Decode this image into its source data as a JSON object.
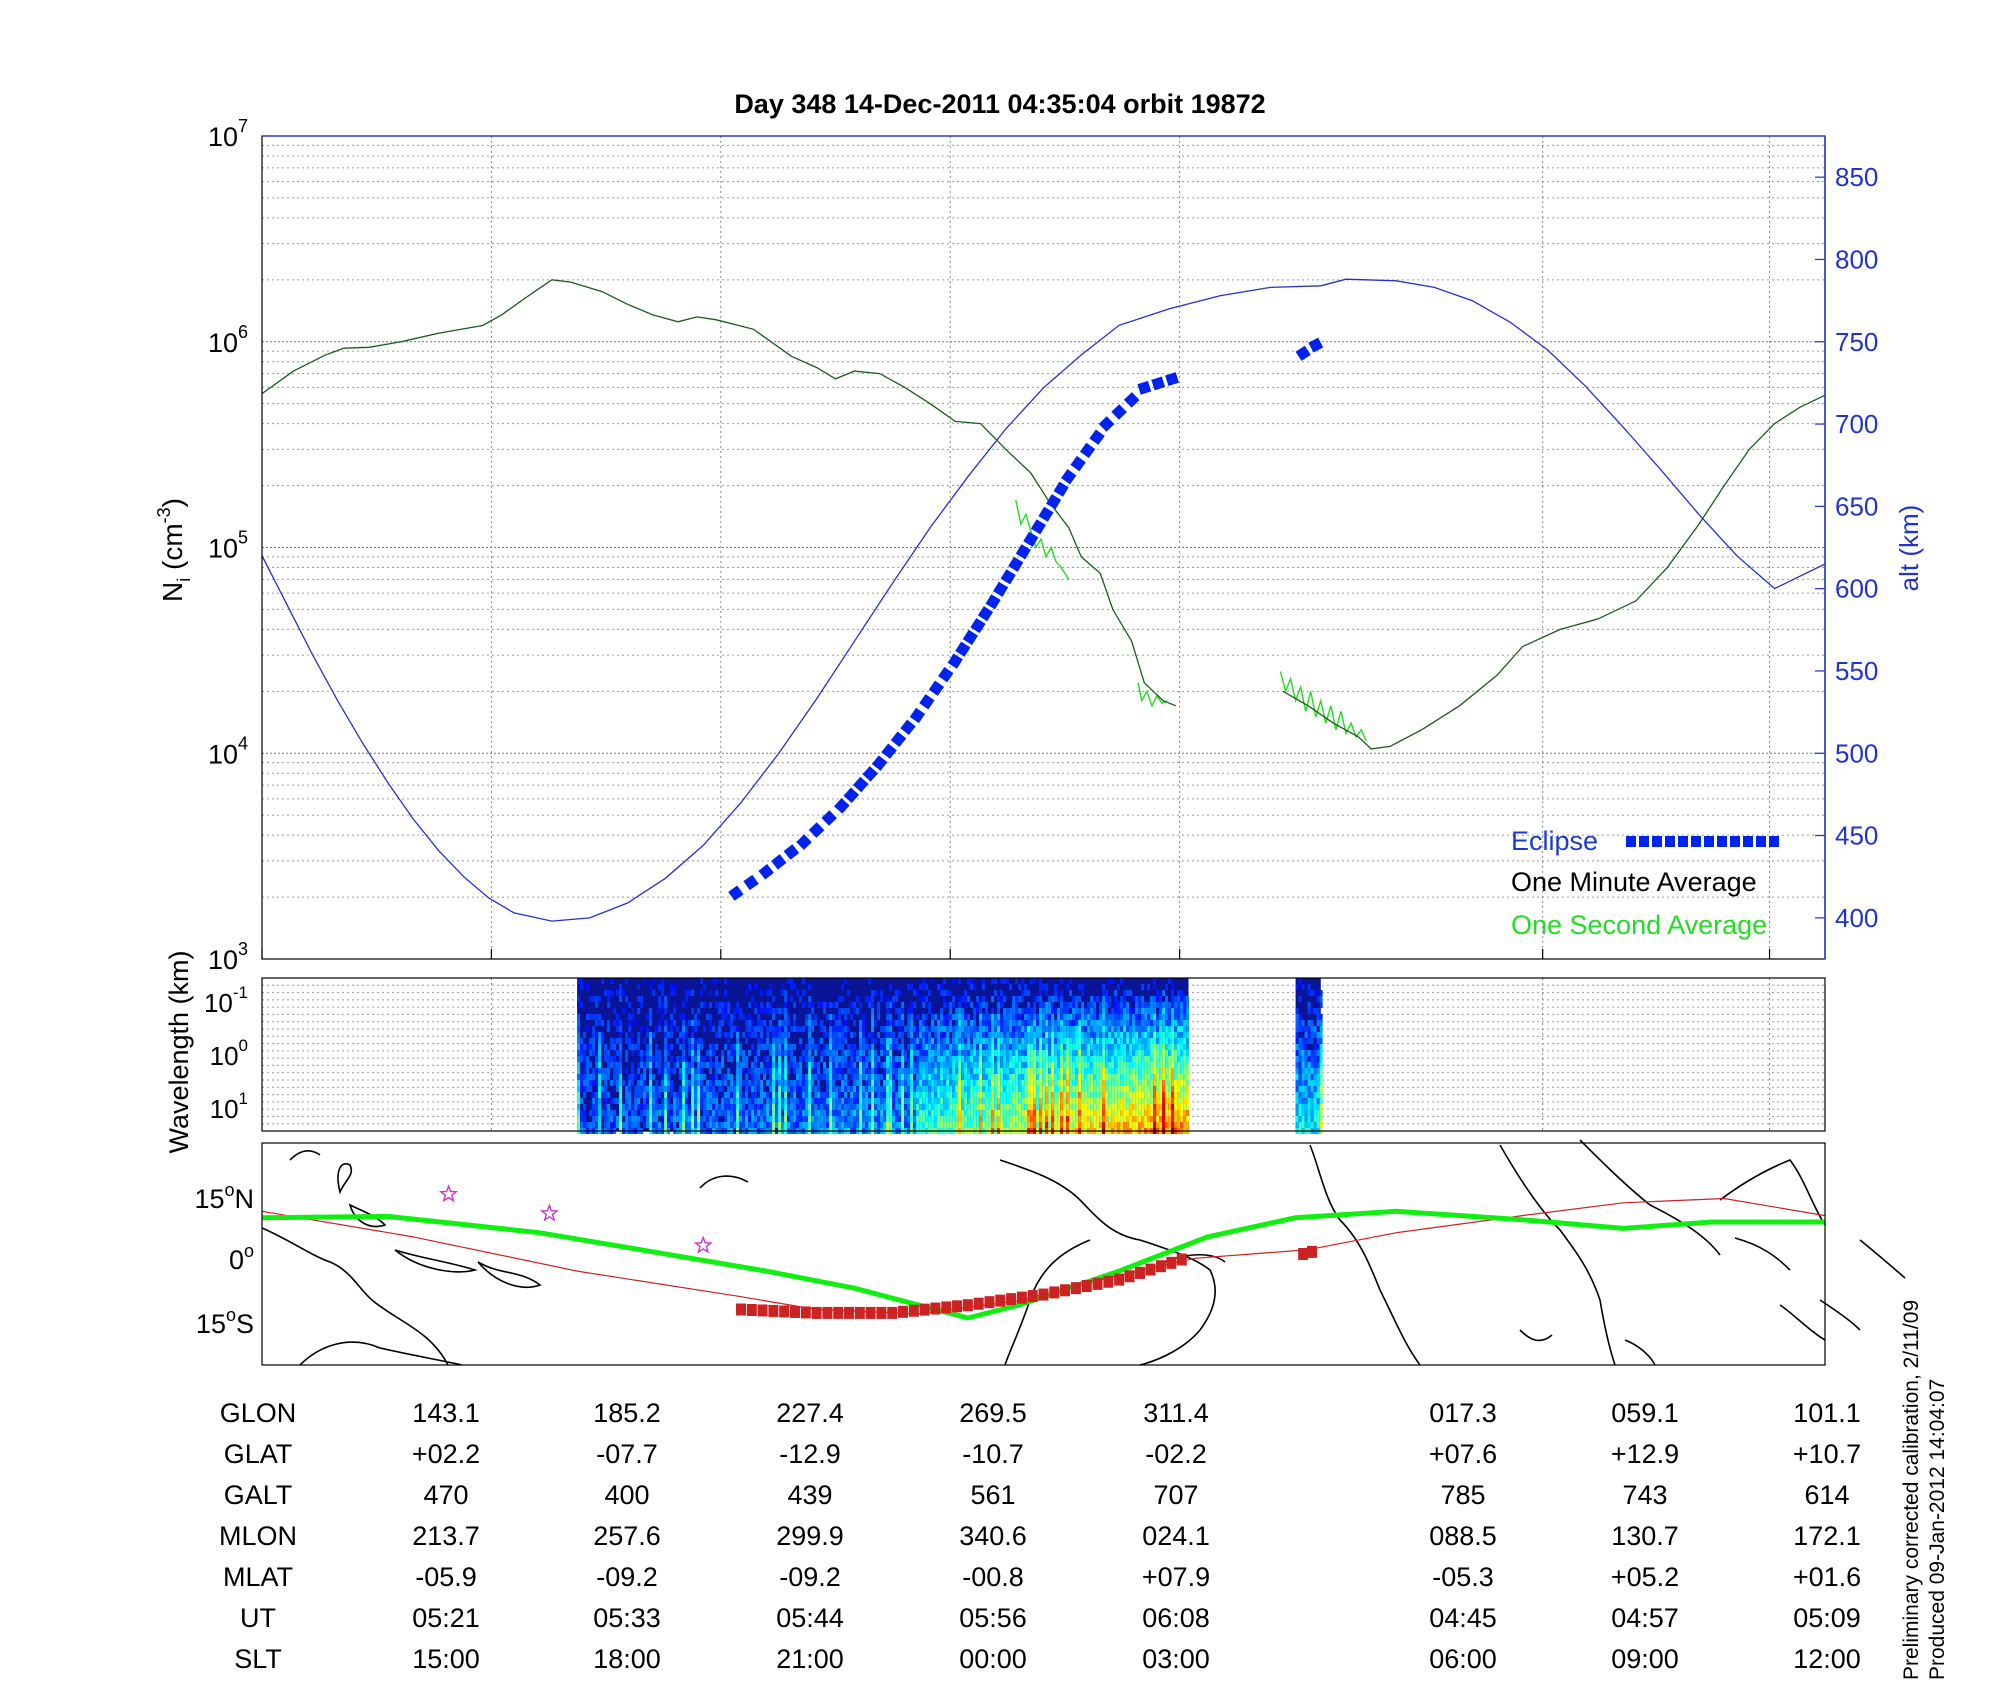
{
  "title": "Day 348  14-Dec-2011 04:35:04   orbit 19872",
  "side_note": {
    "line1": "Preliminary corrected calibration, 2/11/09",
    "line2": "Produced 09-Jan-2012 14:04:07"
  },
  "colors": {
    "density": "#1a5c1a",
    "density_second": "#22dd22",
    "altitude": "#2233cc",
    "eclipse": "#0022ee",
    "track": "#cc2222",
    "ground_track": "#11ee11",
    "star": "#cc33cc",
    "legend_eclipse": "#1a3ad6",
    "legend_minute": "#000000",
    "legend_second": "#22dd22",
    "right_axis": "#2233cc"
  },
  "chart_data": [
    {
      "type": "line",
      "panel": "density",
      "ylabel": "N",
      "ylabel_sub": "i",
      "ylabel_unit_base": "(cm",
      "ylabel_unit_sup": "-3",
      "ylabel_unit_end": ")",
      "yscale": "log",
      "ylim": [
        1000,
        10000000
      ],
      "y_ticks": [
        {
          "base": "10",
          "exp": "3"
        },
        {
          "base": "10",
          "exp": "4"
        },
        {
          "base": "10",
          "exp": "5"
        },
        {
          "base": "10",
          "exp": "6"
        },
        {
          "base": "10",
          "exp": "7"
        }
      ],
      "y2label": "alt (km)",
      "y2lim": [
        375,
        875
      ],
      "y2_ticks": [
        "400",
        "450",
        "500",
        "550",
        "600",
        "650",
        "700",
        "750",
        "800",
        "850"
      ],
      "grid": true,
      "legend": {
        "placement": "bottom-right",
        "entries": [
          {
            "name": "Eclipse",
            "marker": "square"
          },
          {
            "name": "One Minute Average",
            "marker": "none"
          },
          {
            "name": "One Second Average",
            "marker": "none"
          }
        ]
      },
      "series": [
        {
          "name": "One Minute Average",
          "segments": [
            [
              [
                0,
                560000
              ],
              [
                25,
                720000
              ],
              [
                50,
                860000
              ],
              [
                65,
                930000
              ],
              [
                85,
                940000
              ],
              [
                110,
                1000000
              ],
              [
                140,
                1100000
              ],
              [
                175,
                1200000
              ],
              [
                190,
                1350000
              ],
              [
                210,
                1650000
              ],
              [
                230,
                2000000
              ],
              [
                245,
                1950000
              ],
              [
                270,
                1750000
              ],
              [
                290,
                1520000
              ],
              [
                310,
                1350000
              ],
              [
                330,
                1250000
              ],
              [
                345,
                1320000
              ],
              [
                360,
                1280000
              ],
              [
                390,
                1150000
              ],
              [
                420,
                850000
              ],
              [
                440,
                750000
              ],
              [
                455,
                660000
              ],
              [
                470,
                720000
              ],
              [
                490,
                700000
              ],
              [
                510,
                600000
              ],
              [
                530,
                500000
              ],
              [
                550,
                410000
              ],
              [
                570,
                400000
              ],
              [
                590,
                300000
              ],
              [
                610,
                230000
              ],
              [
                625,
                165000
              ],
              [
                640,
                125000
              ],
              [
                650,
                90000
              ],
              [
                665,
                75000
              ],
              [
                675,
                50000
              ],
              [
                690,
                35000
              ],
              [
                700,
                22000
              ],
              [
                715,
                18000
              ],
              [
                725,
                17000
              ]
            ],
            [
              [
                810,
                20000
              ],
              [
                830,
                17000
              ],
              [
                850,
                14000
              ],
              [
                870,
                12000
              ],
              [
                880,
                10500
              ],
              [
                895,
                10800
              ],
              [
                920,
                13000
              ],
              [
                950,
                17000
              ],
              [
                980,
                24000
              ],
              [
                1000,
                33000
              ],
              [
                1030,
                40000
              ],
              [
                1060,
                45000
              ],
              [
                1090,
                55000
              ],
              [
                1115,
                80000
              ],
              [
                1140,
                130000
              ],
              [
                1160,
                200000
              ],
              [
                1180,
                300000
              ],
              [
                1200,
                400000
              ],
              [
                1220,
                480000
              ],
              [
                1240,
                550000
              ]
            ]
          ]
        },
        {
          "name": "One Second Average",
          "segments": [
            [
              [
                598,
                170000
              ],
              [
                602,
                130000
              ],
              [
                606,
                145000
              ],
              [
                610,
                120000
              ],
              [
                614,
                100000
              ],
              [
                618,
                110000
              ],
              [
                622,
                90000
              ],
              [
                626,
                100000
              ],
              [
                630,
                85000
              ],
              [
                634,
                80000
              ],
              [
                640,
                70000
              ]
            ],
            [
              [
                695,
                22000
              ],
              [
                698,
                18000
              ],
              [
                702,
                20000
              ],
              [
                706,
                17000
              ],
              [
                710,
                19000
              ],
              [
                714,
                17500
              ],
              [
                718,
                18000
              ]
            ],
            [
              [
                808,
                25000
              ],
              [
                812,
                20000
              ],
              [
                816,
                23000
              ],
              [
                820,
                18000
              ],
              [
                824,
                21000
              ],
              [
                828,
                16000
              ],
              [
                832,
                20000
              ],
              [
                836,
                15000
              ],
              [
                840,
                18000
              ],
              [
                844,
                14000
              ],
              [
                848,
                17000
              ],
              [
                852,
                13000
              ],
              [
                856,
                16000
              ],
              [
                860,
                12500
              ],
              [
                864,
                14000
              ],
              [
                868,
                12000
              ],
              [
                872,
                13000
              ],
              [
                876,
                11500
              ]
            ]
          ]
        },
        {
          "name": "Altitude",
          "axis": "right",
          "segments": [
            [
              [
                0,
                620
              ],
              [
                20,
                590
              ],
              [
                40,
                560
              ],
              [
                60,
                532
              ],
              [
                80,
                506
              ],
              [
                100,
                482
              ],
              [
                120,
                460
              ],
              [
                140,
                441
              ],
              [
                160,
                425
              ],
              [
                180,
                412
              ],
              [
                200,
                403
              ],
              [
                230,
                398
              ],
              [
                260,
                400
              ],
              [
                290,
                409
              ],
              [
                320,
                424
              ],
              [
                350,
                444
              ],
              [
                380,
                470
              ],
              [
                410,
                500
              ],
              [
                440,
                533
              ],
              [
                470,
                568
              ],
              [
                500,
                603
              ],
              [
                530,
                637
              ],
              [
                560,
                668
              ],
              [
                590,
                697
              ],
              [
                620,
                722
              ],
              [
                650,
                742
              ],
              [
                680,
                760
              ],
              [
                720,
                770
              ],
              [
                760,
                778
              ],
              [
                800,
                783
              ],
              [
                840,
                784
              ],
              [
                860,
                788
              ],
              [
                900,
                787
              ],
              [
                930,
                783
              ],
              [
                960,
                775
              ],
              [
                990,
                762
              ],
              [
                1020,
                745
              ],
              [
                1050,
                723
              ],
              [
                1080,
                698
              ],
              [
                1110,
                672
              ],
              [
                1140,
                645
              ],
              [
                1170,
                620
              ],
              [
                1200,
                600
              ],
              [
                1240,
                615
              ]
            ]
          ]
        },
        {
          "name": "Eclipse",
          "axis": "right",
          "marker": "square",
          "segments": [
            [
              [
                376,
                415
              ],
              [
                400,
                428
              ],
              [
                430,
                446
              ],
              [
                460,
                468
              ],
              [
                490,
                494
              ],
              [
                520,
                523
              ],
              [
                550,
                556
              ],
              [
                580,
                592
              ],
              [
                610,
                630
              ],
              [
                640,
                668
              ],
              [
                670,
                700
              ],
              [
                700,
                722
              ],
              [
                733,
                730
              ]
            ],
            [
              [
                826,
                743
              ],
              [
                836,
                748
              ],
              [
                846,
                752
              ]
            ]
          ]
        }
      ]
    },
    {
      "type": "heatmap",
      "panel": "spectrogram",
      "ylabel": "Wavelength (km)",
      "y_ticks": [
        {
          "base": "10",
          "exp": "-1"
        },
        {
          "base": "10",
          "exp": "0"
        },
        {
          "base": "10",
          "exp": "1"
        }
      ],
      "data_blocks": [
        {
          "x_start": 250,
          "x_end": 735
        },
        {
          "x_start": 820,
          "x_end": 840
        }
      ],
      "colormap": "jet"
    },
    {
      "type": "line",
      "panel": "ground_track",
      "y_ticks": [
        {
          "value": "15",
          "sup": "o",
          "suffix": "N"
        },
        {
          "value": "0",
          "sup": "o",
          "suffix": ""
        },
        {
          "value": "15",
          "sup": "o",
          "suffix": "S"
        }
      ],
      "ylim": [
        -25,
        27
      ],
      "series": [
        {
          "name": "Ground track",
          "values": [
            [
              0,
              9.5
            ],
            [
              100,
              9.8
            ],
            [
              220,
              6
            ],
            [
              300,
              2
            ],
            [
              400,
              -3
            ],
            [
              470,
              -7
            ],
            [
              560,
              -14
            ],
            [
              600,
              -11
            ],
            [
              680,
              -3
            ],
            [
              750,
              5
            ],
            [
              820,
              9.5
            ],
            [
              900,
              11
            ],
            [
              1000,
              9
            ],
            [
              1080,
              7
            ],
            [
              1150,
              8.5
            ],
            [
              1240,
              8.5
            ]
          ]
        },
        {
          "name": "Orbit track",
          "values": [
            [
              0,
              11
            ],
            [
              120,
              5
            ],
            [
              250,
              -3
            ],
            [
              380,
              -9
            ],
            [
              440,
              -12
            ],
            [
              520,
              -13
            ],
            [
              600,
              -10
            ],
            [
              680,
              -4
            ],
            [
              740,
              0
            ],
            [
              830,
              2
            ],
            [
              900,
              6
            ],
            [
              1000,
              10
            ],
            [
              1080,
              13
            ],
            [
              1160,
              14
            ],
            [
              1240,
              10
            ]
          ]
        },
        {
          "name": "Eclipse track",
          "values": [
            [
              380,
              -12
            ],
            [
              440,
              -12.8
            ],
            [
              500,
              -12.8
            ],
            [
              560,
              -11
            ],
            [
              620,
              -8.5
            ],
            [
              680,
              -5
            ],
            [
              738,
              0.5
            ]
          ],
          "second_segment": [
            [
              826,
              1
            ],
            [
              840,
              2
            ]
          ]
        }
      ],
      "stars": [
        [
          148,
          15
        ],
        [
          228,
          10.5
        ],
        [
          350,
          3
        ]
      ]
    }
  ],
  "table": {
    "rows": [
      {
        "label": "GLON",
        "values": [
          "143.1",
          "185.2",
          "227.4",
          "269.5",
          "311.4",
          "017.3",
          "059.1",
          "101.1"
        ]
      },
      {
        "label": "GLAT",
        "values": [
          "+02.2",
          "-07.7",
          "-12.9",
          "-10.7",
          "-02.2",
          "+07.6",
          "+12.9",
          "+10.7"
        ]
      },
      {
        "label": "GALT",
        "values": [
          "470",
          "400",
          "439",
          "561",
          "707",
          "785",
          "743",
          "614"
        ]
      },
      {
        "label": "MLON",
        "values": [
          "213.7",
          "257.6",
          "299.9",
          "340.6",
          "024.1",
          "088.5",
          "130.7",
          "172.1"
        ]
      },
      {
        "label": "MLAT",
        "values": [
          "-05.9",
          "-09.2",
          "-09.2",
          "-00.8",
          "+07.9",
          "-05.3",
          "+05.2",
          "+01.6"
        ]
      },
      {
        "label": "UT",
        "values": [
          "05:21",
          "05:33",
          "05:44",
          "05:56",
          "06:08",
          "04:45",
          "04:57",
          "05:09"
        ]
      },
      {
        "label": "SLT",
        "values": [
          "15:00",
          "18:00",
          "21:00",
          "00:00",
          "03:00",
          "06:00",
          "09:00",
          "12:00"
        ]
      }
    ]
  }
}
